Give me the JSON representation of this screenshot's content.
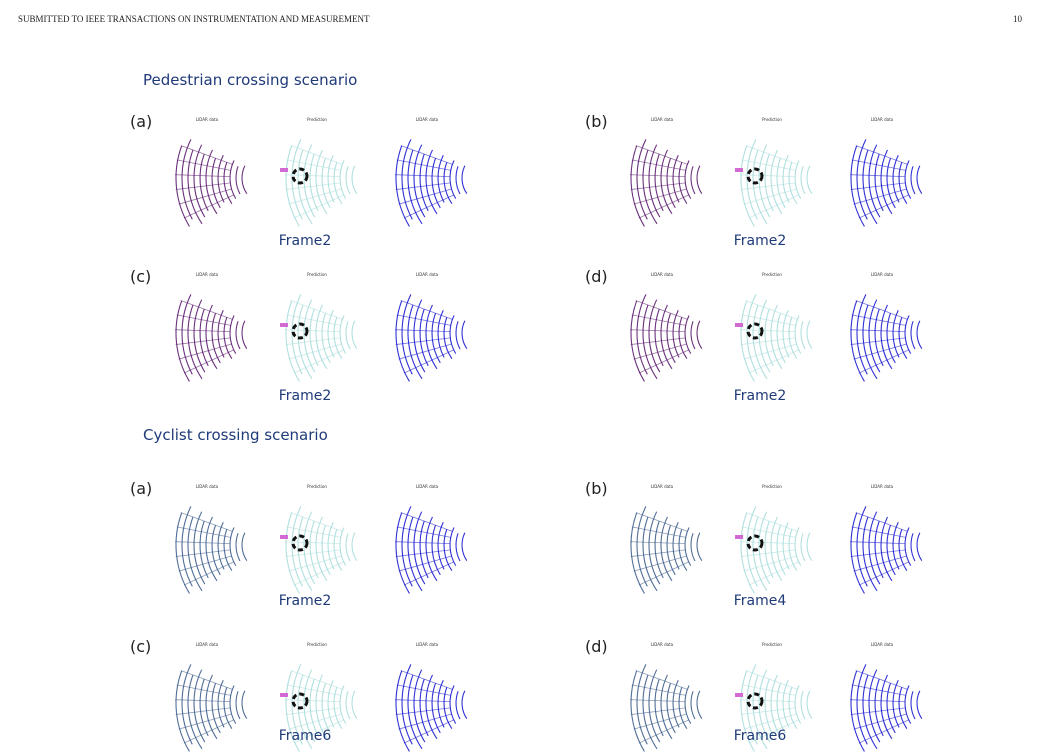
{
  "header": {
    "title": "SUBMITTED TO IEEE TRANSACTIONS ON INSTRUMENTATION AND MEASUREMENT",
    "page": "10"
  },
  "sections": [
    {
      "title": "Pedestrian crossing scenario",
      "panels": [
        {
          "label": "(a)",
          "subplots": [
            "LIDAR data",
            "Prediction",
            "LIDAR data"
          ],
          "frame": "Frame2"
        },
        {
          "label": "(b)",
          "subplots": [
            "LIDAR data",
            "Prediction",
            "LIDAR data"
          ],
          "frame": "Frame2"
        },
        {
          "label": "(c)",
          "subplots": [
            "LIDAR data",
            "Prediction",
            "LIDAR data"
          ],
          "frame": "Frame2"
        },
        {
          "label": "(d)",
          "subplots": [
            "LIDAR data",
            "Prediction",
            "LIDAR data"
          ],
          "frame": "Frame2"
        }
      ]
    },
    {
      "title": "Cyclist crossing scenario",
      "panels": [
        {
          "label": "(a)",
          "subplots": [
            "LIDAR data",
            "Prediction",
            "LIDAR data"
          ],
          "frame": "Frame2"
        },
        {
          "label": "(b)",
          "subplots": [
            "LIDAR data",
            "Prediction",
            "LIDAR data"
          ],
          "frame": "Frame4"
        },
        {
          "label": "(c)",
          "subplots": [
            "LIDAR data",
            "Prediction",
            "LIDAR data"
          ],
          "frame": "Frame6"
        },
        {
          "label": "(d)",
          "subplots": [
            "LIDAR data",
            "Prediction",
            "LIDAR data"
          ],
          "frame": "Frame6"
        }
      ]
    }
  ]
}
